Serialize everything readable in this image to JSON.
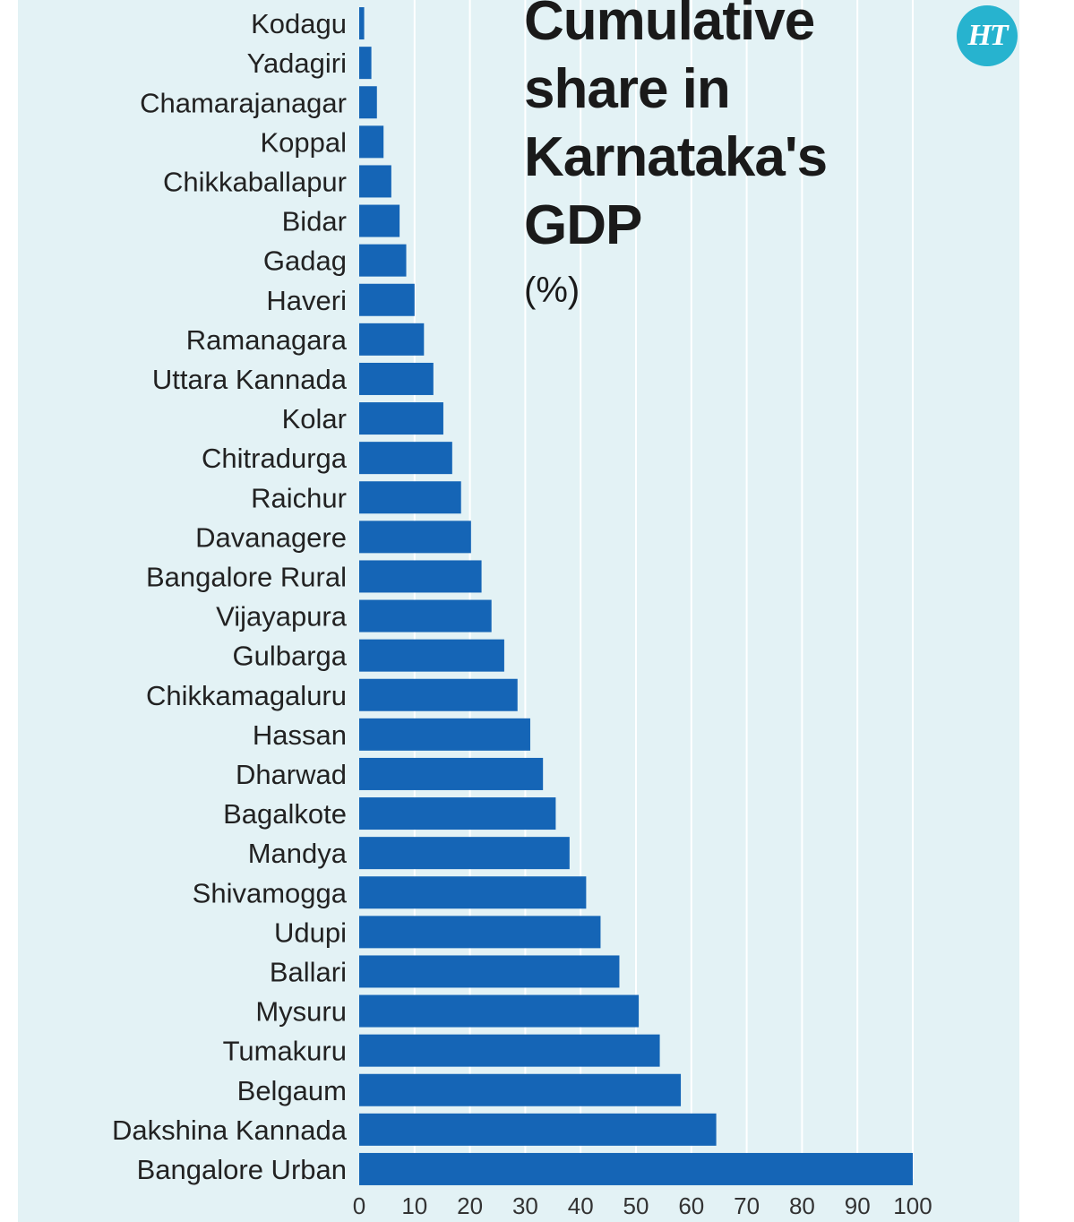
{
  "chart_data": {
    "type": "bar",
    "orientation": "horizontal",
    "title_lines": [
      "Cumulative",
      "share in",
      "Karnataka's",
      "GDP"
    ],
    "unit": "(%)",
    "categories": [
      "Kodagu",
      "Yadagiri",
      "Chamarajanagar",
      "Koppal",
      "Chikkaballapur",
      "Bidar",
      "Gadag",
      "Haveri",
      "Ramanagara",
      "Uttara Kannada",
      "Kolar",
      "Chitradurga",
      "Raichur",
      "Davanagere",
      "Bangalore Rural",
      "Vijayapura",
      "Gulbarga",
      "Chikkamagaluru",
      "Hassan",
      "Dharwad",
      "Bagalkote",
      "Mandya",
      "Shivamogga",
      "Udupi",
      "Ballari",
      "Mysuru",
      "Tumakuru",
      "Belgaum",
      "Dakshina Kannada",
      "Bangalore Urban"
    ],
    "values": [
      0.9,
      2.2,
      3.2,
      4.4,
      5.8,
      7.3,
      8.5,
      10.0,
      11.7,
      13.4,
      15.2,
      16.8,
      18.4,
      20.2,
      22.1,
      23.9,
      26.2,
      28.6,
      30.9,
      33.2,
      35.5,
      38.0,
      41.0,
      43.6,
      47.0,
      50.5,
      54.3,
      58.1,
      64.5,
      100
    ],
    "xlim": [
      0,
      100
    ],
    "xticks": [
      "0",
      "10",
      "20",
      "30",
      "40",
      "50",
      "60",
      "70",
      "80",
      "90",
      "100"
    ],
    "bar_color": "#1565b6",
    "gridlines": true
  },
  "logo_text": "HT",
  "colors": {
    "panel_background": "#e3f2f5",
    "gridline": "#ffffff",
    "logo": "#27b3cf"
  }
}
